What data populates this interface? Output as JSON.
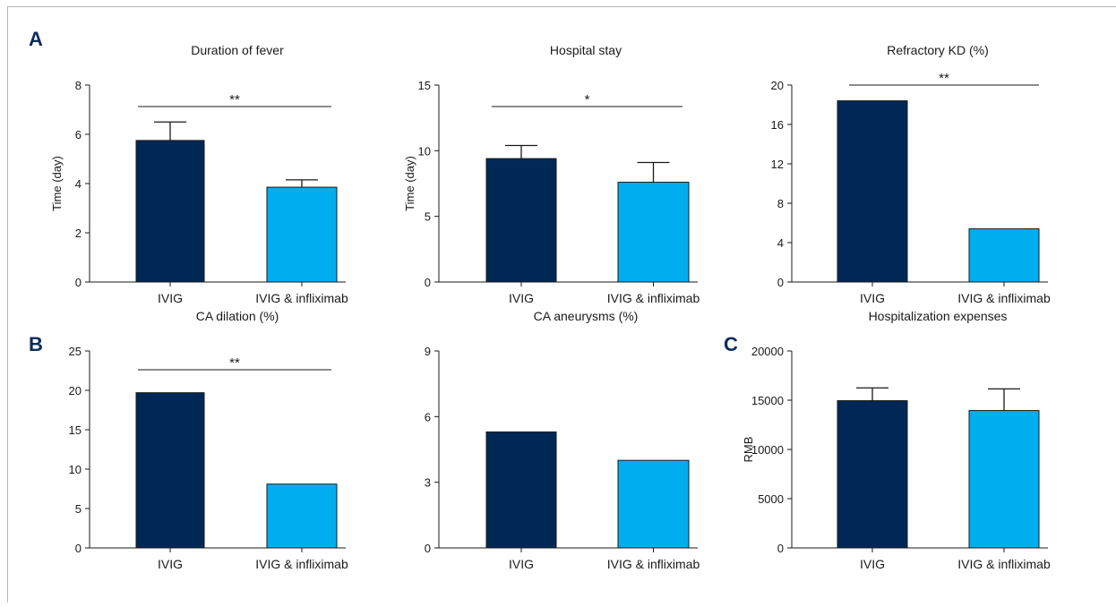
{
  "panel_letters": [
    "A",
    "B",
    "C"
  ],
  "colors": {
    "ivig": "#002856",
    "combo": "#00adef",
    "axis": "#1a1a1a",
    "panel_letter": "#0d2c5a"
  },
  "chart_data": [
    {
      "type": "bar",
      "title": "Duration of fever",
      "ylabel": "Time (day)",
      "categories": [
        "IVIG",
        "IVIG & infliximab"
      ],
      "values": [
        5.75,
        3.85
      ],
      "errors": [
        0.75,
        0.3
      ],
      "ylim": [
        0,
        8
      ],
      "yticks": [
        "0",
        "2",
        "4",
        "6",
        "8"
      ],
      "significance": "**"
    },
    {
      "type": "bar",
      "title": "Hospital stay",
      "ylabel": "Time (day)",
      "categories": [
        "IVIG",
        "IVIG & infliximab"
      ],
      "values": [
        9.4,
        7.6
      ],
      "errors": [
        1.0,
        1.5
      ],
      "ylim": [
        0,
        15
      ],
      "yticks": [
        "0",
        "5",
        "10",
        "15"
      ],
      "significance": "*"
    },
    {
      "type": "bar",
      "title": "Refractory KD (%)",
      "ylabel": "",
      "categories": [
        "IVIG",
        "IVIG & infliximab"
      ],
      "values": [
        18.4,
        5.4
      ],
      "errors": [
        0,
        0
      ],
      "ylim": [
        0,
        20
      ],
      "yticks": [
        "0",
        "4",
        "8",
        "12",
        "16",
        "20"
      ],
      "significance": "**"
    },
    {
      "type": "bar",
      "title": "CA dilation (%)",
      "ylabel": "",
      "categories": [
        "IVIG",
        "IVIG & infliximab"
      ],
      "values": [
        19.7,
        8.1
      ],
      "errors": [
        0,
        0
      ],
      "ylim": [
        0,
        25
      ],
      "yticks": [
        "0",
        "5",
        "10",
        "15",
        "20",
        "25"
      ],
      "significance": "**"
    },
    {
      "type": "bar",
      "title": "CA aneurysms (%)",
      "ylabel": "",
      "categories": [
        "IVIG",
        "IVIG & infliximab"
      ],
      "values": [
        5.3,
        4.0
      ],
      "errors": [
        0,
        0
      ],
      "ylim": [
        0,
        9
      ],
      "yticks": [
        "0",
        "3",
        "6",
        "9"
      ],
      "significance": ""
    },
    {
      "type": "bar",
      "title": "Hospitalization expenses",
      "ylabel": "RMB",
      "categories": [
        "IVIG",
        "IVIG & infliximab"
      ],
      "values": [
        14950,
        13950
      ],
      "errors": [
        1300,
        2200
      ],
      "ylim": [
        0,
        20000
      ],
      "yticks": [
        "0",
        "5000",
        "10000",
        "15000",
        "20000"
      ],
      "significance": ""
    }
  ]
}
